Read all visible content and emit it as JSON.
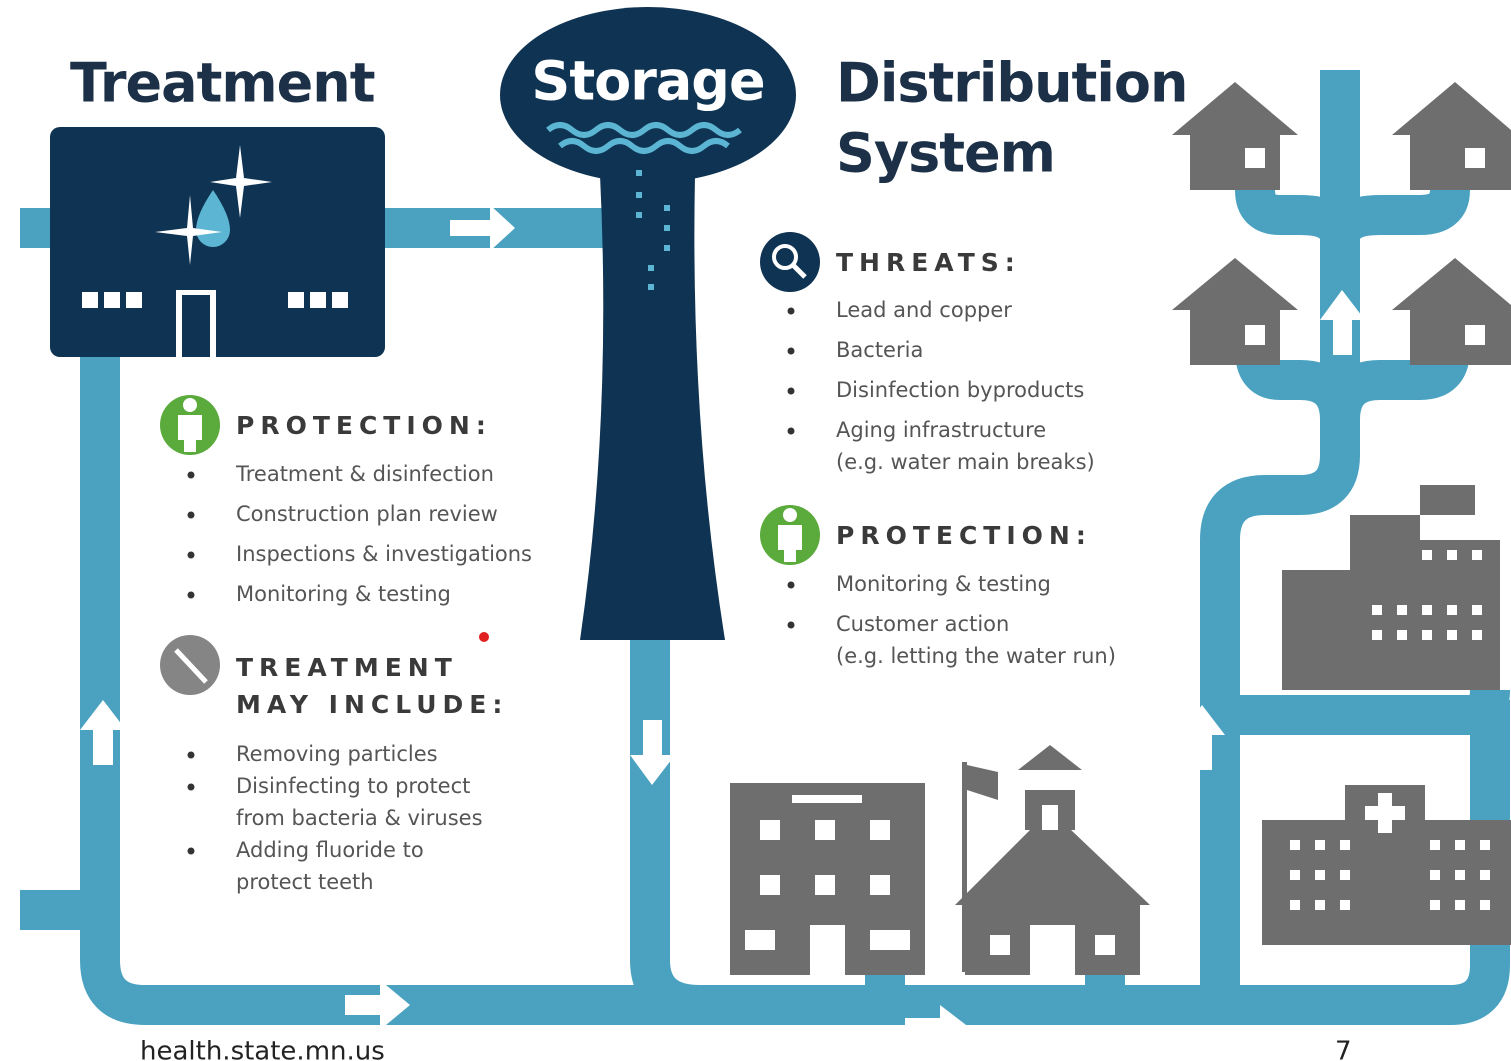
{
  "treatment": {
    "title": "Treatment",
    "protection": {
      "heading": "PROTECTION:",
      "items": [
        [
          "Treatment & disinfection"
        ],
        [
          "Construction plan review"
        ],
        [
          "Inspections & investigations"
        ],
        [
          "Monitoring & testing"
        ]
      ]
    },
    "may_include": {
      "heading_lines": [
        "TREATMENT",
        "MAY INCLUDE:"
      ],
      "items": [
        [
          "Removing particles"
        ],
        [
          "Disinfecting to protect",
          "from bacteria & viruses"
        ],
        [
          "Adding fluoride to",
          "protect teeth"
        ]
      ]
    }
  },
  "storage": {
    "title": "Storage"
  },
  "distribution": {
    "title_lines": [
      "Distribution",
      "System"
    ],
    "threats": {
      "heading": "THREATS:",
      "items": [
        [
          "Lead and copper"
        ],
        [
          "Bacteria"
        ],
        [
          "Disinfection byproducts"
        ],
        [
          "Aging infrastructure",
          "(e.g. water main breaks)"
        ]
      ]
    },
    "protection": {
      "heading": "PROTECTION:",
      "items": [
        [
          "Monitoring & testing"
        ],
        [
          "Customer action",
          "(e.g. letting the water run)"
        ]
      ]
    }
  },
  "footer": {
    "url": "health.state.mn.us",
    "page": "7"
  }
}
